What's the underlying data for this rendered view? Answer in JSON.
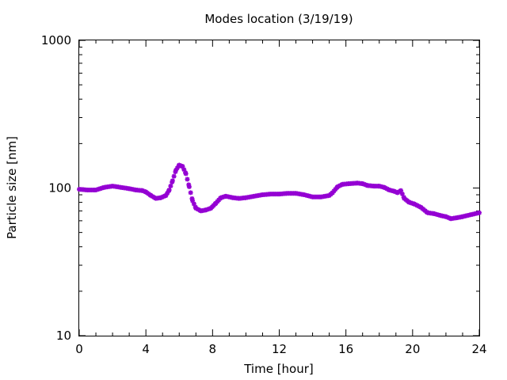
{
  "chart_data": {
    "type": "scatter",
    "title": "Modes location (3/19/19)",
    "xlabel": "Time [hour]",
    "ylabel": "Particle size [nm]",
    "xlim": [
      0,
      24
    ],
    "ylim": [
      10,
      1000
    ],
    "y_scale": "log",
    "grid": false,
    "x_ticks": [
      0,
      4,
      8,
      12,
      16,
      20,
      24
    ],
    "x_tick_labels": [
      "0",
      "4",
      "8",
      "12",
      "16",
      "20",
      "24"
    ],
    "y_ticks": [
      10,
      100,
      1000
    ],
    "y_tick_labels": [
      "10",
      "100",
      "1000"
    ],
    "marker_color": "#9400d3",
    "series": [
      {
        "name": "",
        "points": [
          [
            0.0,
            98
          ],
          [
            0.5,
            97
          ],
          [
            1.0,
            97
          ],
          [
            1.5,
            101
          ],
          [
            2.0,
            103
          ],
          [
            2.5,
            101
          ],
          [
            3.0,
            99
          ],
          [
            3.4,
            97
          ],
          [
            3.8,
            96
          ],
          [
            4.0,
            94
          ],
          [
            4.3,
            89
          ],
          [
            4.6,
            85
          ],
          [
            4.9,
            86
          ],
          [
            5.2,
            89
          ],
          [
            5.4,
            97
          ],
          [
            5.6,
            112
          ],
          [
            5.8,
            132
          ],
          [
            6.0,
            143
          ],
          [
            6.2,
            140
          ],
          [
            6.4,
            125
          ],
          [
            6.6,
            102
          ],
          [
            6.8,
            82
          ],
          [
            7.0,
            73
          ],
          [
            7.3,
            70
          ],
          [
            7.6,
            71
          ],
          [
            7.9,
            73
          ],
          [
            8.2,
            79
          ],
          [
            8.5,
            86
          ],
          [
            8.8,
            88
          ],
          [
            9.2,
            86
          ],
          [
            9.6,
            85
          ],
          [
            10.0,
            86
          ],
          [
            10.5,
            88
          ],
          [
            11.0,
            90
          ],
          [
            11.5,
            91
          ],
          [
            12.0,
            91
          ],
          [
            12.5,
            92
          ],
          [
            13.0,
            92
          ],
          [
            13.5,
            90
          ],
          [
            14.0,
            87
          ],
          [
            14.5,
            87
          ],
          [
            15.0,
            89
          ],
          [
            15.2,
            93
          ],
          [
            15.5,
            102
          ],
          [
            15.8,
            106
          ],
          [
            16.2,
            107
          ],
          [
            16.7,
            108
          ],
          [
            17.0,
            107
          ],
          [
            17.3,
            104
          ],
          [
            17.7,
            103
          ],
          [
            18.0,
            103
          ],
          [
            18.3,
            101
          ],
          [
            18.6,
            97
          ],
          [
            18.9,
            95
          ],
          [
            19.1,
            93
          ],
          [
            19.3,
            96
          ],
          [
            19.5,
            85
          ],
          [
            19.8,
            80
          ],
          [
            20.1,
            78
          ],
          [
            20.5,
            74
          ],
          [
            20.9,
            68
          ],
          [
            21.3,
            67
          ],
          [
            21.7,
            65
          ],
          [
            22.0,
            64
          ],
          [
            22.3,
            62
          ],
          [
            22.7,
            63
          ],
          [
            23.0,
            64
          ],
          [
            23.5,
            66
          ],
          [
            24.0,
            68
          ]
        ]
      }
    ]
  }
}
